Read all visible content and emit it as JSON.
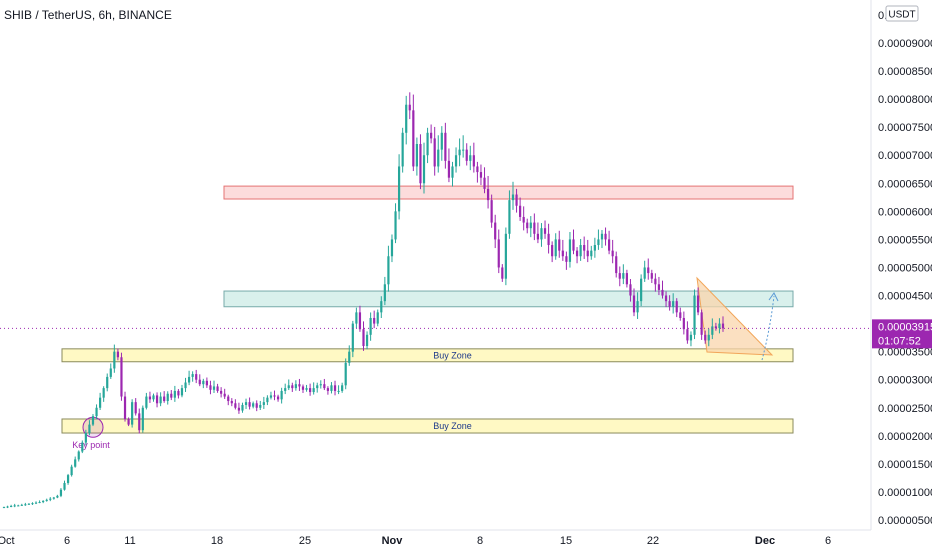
{
  "header": {
    "title": "SHIB / TetherUS, 6h, BINANCE"
  },
  "price_axis": {
    "currency_button": "USDT",
    "current_price_label": "0.00003915",
    "countdown_label": "01:07:52"
  },
  "colors": {
    "up": "#26a69a",
    "down": "#9c27b0",
    "price_tag": "#9c27b0",
    "buy_zone_fill": "#fff9c4",
    "resistance_fill": "#fcdcdc",
    "mid_zone_fill": "#d9f0ec",
    "triangle_fill": "#f9d6ac"
  },
  "chart_data": {
    "type": "candlestick",
    "title": "SHIB / TetherUS, 6h, BINANCE",
    "x_tick_labels": [
      "Oct",
      "6",
      "11",
      "18",
      "25",
      "Nov",
      "8",
      "15",
      "22",
      "Dec",
      "6"
    ],
    "y_tick_labels": [
      "0.00009000",
      "0.00008500",
      "0.00008000",
      "0.00007500",
      "0.00007000",
      "0.00006500",
      "0.00006000",
      "0.00005500",
      "0.00005000",
      "0.00004500",
      "0.00004000",
      "0.00003500",
      "0.00003000",
      "0.00002500",
      "0.00002000",
      "0.00001500",
      "0.00001000",
      "0.00000500"
    ],
    "top_partial_tick": "0.0",
    "ylim": [
      4e-06,
      9.55e-05
    ],
    "current_price": 3.915e-05,
    "zones": [
      {
        "name": "resistance",
        "low": 6.22e-05,
        "high": 6.45e-05,
        "label": ""
      },
      {
        "name": "mid",
        "low": 4.3e-05,
        "high": 4.58e-05,
        "label": ""
      },
      {
        "name": "buy-zone-upper",
        "low": 3.32e-05,
        "high": 3.55e-05,
        "label": "Buy Zone"
      },
      {
        "name": "buy-zone-lower",
        "low": 2.05e-05,
        "high": 2.3e-05,
        "label": "Buy Zone"
      }
    ],
    "annotations": [
      {
        "type": "circle",
        "label": "Key point",
        "price": 2.17e-05
      },
      {
        "type": "triangle",
        "label": ""
      },
      {
        "type": "dotted-arrow",
        "label": ""
      }
    ],
    "closes": [
      7.3e-06,
      7.4e-06,
      7.5e-06,
      7.6e-06,
      7.6e-06,
      7.7e-06,
      7.8e-06,
      7.9e-06,
      8e-06,
      8.1e-06,
      8.2e-06,
      8.4e-06,
      8.6e-06,
      8.8e-06,
      9e-06,
      9.3e-06,
      1.04e-05,
      1.16e-05,
      1.3e-05,
      1.45e-05,
      1.58e-05,
      1.72e-05,
      1.88e-05,
      2.05e-05,
      2.2e-05,
      2.35e-05,
      2.5e-05,
      2.68e-05,
      2.85e-05,
      3.05e-05,
      3.2e-05,
      3.5e-05,
      3.4e-05,
      2.7e-05,
      2.3e-05,
      2.2e-05,
      2.6e-05,
      2.4e-05,
      2.1e-05,
      2.5e-05,
      2.7e-05,
      2.65e-05,
      2.72e-05,
      2.58e-05,
      2.7e-05,
      2.62e-05,
      2.75e-05,
      2.68e-05,
      2.8e-05,
      2.72e-05,
      2.85e-05,
      2.95e-05,
      3.05e-05,
      3.1e-05,
      3e-05,
      2.92e-05,
      2.98e-05,
      2.9e-05,
      2.82e-05,
      2.88e-05,
      2.8e-05,
      2.75e-05,
      2.7e-05,
      2.62e-05,
      2.58e-05,
      2.5e-05,
      2.45e-05,
      2.55e-05,
      2.6e-05,
      2.52e-05,
      2.58e-05,
      2.5e-05,
      2.55e-05,
      2.6e-05,
      2.68e-05,
      2.72e-05,
      2.7e-05,
      2.65e-05,
      2.8e-05,
      2.85e-05,
      2.9e-05,
      2.85e-05,
      2.92e-05,
      2.88e-05,
      2.82e-05,
      2.85e-05,
      2.78e-05,
      2.85e-05,
      2.9e-05,
      2.92e-05,
      2.85e-05,
      2.8e-05,
      2.9e-05,
      2.8e-05,
      2.8e-05,
      2.9e-05,
      3.3e-05,
      3.5e-05,
      4e-05,
      4.2e-05,
      3.9e-05,
      3.6e-05,
      3.8e-05,
      4.1e-05,
      4e-05,
      4.2e-05,
      4.4e-05,
      4.7e-05,
      5.2e-05,
      5.5e-05,
      6e-05,
      6.8e-05,
      7.4e-05,
      7.9e-05,
      7.8e-05,
      6.8e-05,
      7.2e-05,
      6.5e-05,
      7e-05,
      7.4e-05,
      7.3e-05,
      6.8e-05,
      7.1e-05,
      7.4e-05,
      6.9e-05,
      6.6e-05,
      6.8e-05,
      7e-05,
      7.1e-05,
      7.1e-05,
      6.9e-05,
      7e-05,
      6.8e-05,
      6.7e-05,
      6.6e-05,
      6.4e-05,
      6.2e-05,
      5.8e-05,
      5.5e-05,
      5e-05,
      4.8e-05,
      5.6e-05,
      6.2e-05,
      6.3e-05,
      6.1e-05,
      5.9e-05,
      5.8e-05,
      5.7e-05,
      5.8e-05,
      5.6e-05,
      5.5e-05,
      5.7e-05,
      5.6e-05,
      5.4e-05,
      5.2e-05,
      5.5e-05,
      5.3e-05,
      5.2e-05,
      5.1e-05,
      5.5e-05,
      5.3e-05,
      5.2e-05,
      5.4e-05,
      5.3e-05,
      5.2e-05,
      5.3e-05,
      5.4e-05,
      5.5e-05,
      5.6e-05,
      5.5e-05,
      5.3e-05,
      5.2e-05,
      4.9e-05,
      4.8e-05,
      4.9e-05,
      4.7e-05,
      4.5e-05,
      4.2e-05,
      4.4e-05,
      4.8e-05,
      5e-05,
      4.9e-05,
      4.8e-05,
      4.7e-05,
      4.6e-05,
      4.5e-05,
      4.4e-05,
      4.3e-05,
      4.4e-05,
      4.2e-05,
      4.1e-05,
      3.9e-05,
      3.7e-05,
      3.8e-05,
      4.5e-05,
      4.2e-05,
      3.8e-05,
      3.7e-05,
      3.8e-05,
      3.95e-05,
      3.92e-05,
      4e-05,
      3.915e-05
    ]
  }
}
